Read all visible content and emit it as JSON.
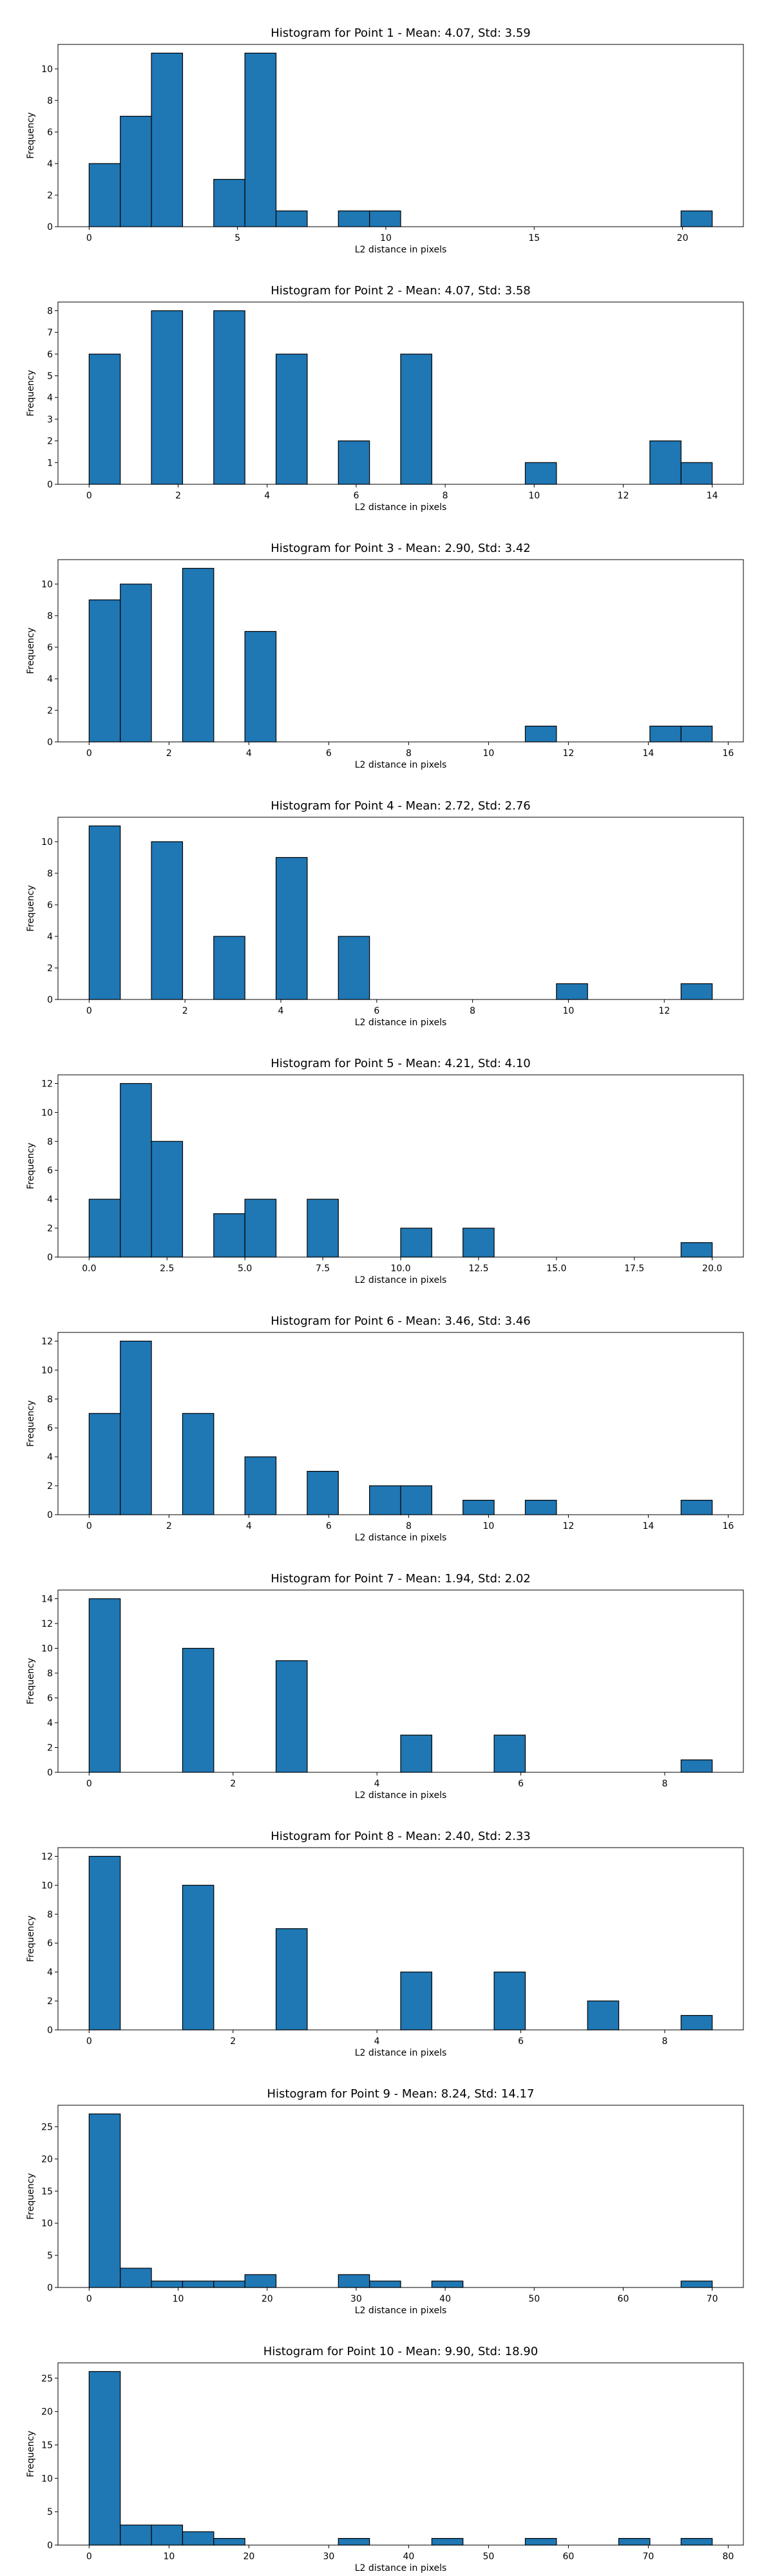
{
  "chart_data": [
    {
      "type": "histogram",
      "title": "Histogram for Point 1 - Mean: 4.07, Std: 3.59",
      "xlabel": "L2 distance in pixels",
      "ylabel": "Frequency",
      "color": "#1f77b4",
      "edgecolor": "#000000",
      "bins": [
        0,
        1.05,
        2.1,
        3.15,
        4.2,
        5.25,
        6.3,
        7.35,
        8.4,
        9.45,
        10.5,
        11.55,
        12.6,
        13.65,
        14.7,
        15.75,
        16.8,
        17.85,
        18.9,
        19.95,
        21
      ],
      "values": [
        4,
        7,
        11,
        0,
        3,
        11,
        1,
        0,
        1,
        1,
        0,
        0,
        0,
        0,
        0,
        0,
        0,
        0,
        0,
        1
      ],
      "xlim": [
        -1.05,
        22.05
      ],
      "xticks": [
        0,
        5,
        10,
        15,
        20
      ],
      "ylim": [
        0,
        11.55
      ],
      "yticks": [
        0,
        2,
        4,
        6,
        8,
        10
      ]
    },
    {
      "type": "histogram",
      "title": "Histogram for Point 2 - Mean: 4.07, Std: 3.58",
      "xlabel": "L2 distance in pixels",
      "ylabel": "Frequency",
      "color": "#1f77b4",
      "edgecolor": "#000000",
      "bins": [
        0,
        0.7,
        1.4,
        2.1,
        2.8,
        3.5,
        4.2,
        4.9,
        5.6,
        6.3,
        7,
        7.7,
        8.4,
        9.1,
        9.8,
        10.5,
        11.2,
        11.9,
        12.6,
        13.3,
        14
      ],
      "values": [
        6,
        0,
        8,
        0,
        8,
        0,
        6,
        0,
        2,
        0,
        6,
        0,
        0,
        0,
        1,
        0,
        0,
        0,
        2,
        1
      ],
      "xlim": [
        -0.7,
        14.7
      ],
      "xticks": [
        0,
        2,
        4,
        6,
        8,
        10,
        12,
        14
      ],
      "ylim": [
        0,
        8.4
      ],
      "yticks": [
        0,
        1,
        2,
        3,
        4,
        5,
        6,
        7,
        8
      ]
    },
    {
      "type": "histogram",
      "title": "Histogram for Point 3 - Mean: 2.90, Std: 3.42",
      "xlabel": "L2 distance in pixels",
      "ylabel": "Frequency",
      "color": "#1f77b4",
      "edgecolor": "#000000",
      "bins": [
        0,
        0.78,
        1.56,
        2.34,
        3.12,
        3.9,
        4.68,
        5.46,
        6.24,
        7.02,
        7.8,
        8.58,
        9.36,
        10.14,
        10.92,
        11.7,
        12.48,
        13.26,
        14.04,
        14.82,
        15.6
      ],
      "values": [
        9,
        10,
        0,
        11,
        0,
        7,
        0,
        0,
        0,
        0,
        0,
        0,
        0,
        0,
        1,
        0,
        0,
        0,
        1,
        1
      ],
      "xlim": [
        -0.78,
        16.38
      ],
      "xticks": [
        0,
        2,
        4,
        6,
        8,
        10,
        12,
        14,
        16
      ],
      "ylim": [
        0,
        11.55
      ],
      "yticks": [
        0,
        2,
        4,
        6,
        8,
        10
      ]
    },
    {
      "type": "histogram",
      "title": "Histogram for Point 4 - Mean: 2.72, Std: 2.76",
      "xlabel": "L2 distance in pixels",
      "ylabel": "Frequency",
      "color": "#1f77b4",
      "edgecolor": "#000000",
      "bins": [
        0,
        0.65,
        1.3,
        1.95,
        2.6,
        3.25,
        3.9,
        4.55,
        5.2,
        5.85,
        6.5,
        7.15,
        7.8,
        8.45,
        9.1,
        9.75,
        10.4,
        11.05,
        11.7,
        12.35,
        13
      ],
      "values": [
        11,
        0,
        10,
        0,
        4,
        0,
        9,
        0,
        4,
        0,
        0,
        0,
        0,
        0,
        0,
        1,
        0,
        0,
        0,
        1
      ],
      "xlim": [
        -0.65,
        13.65
      ],
      "xticks": [
        0,
        2,
        4,
        6,
        8,
        10,
        12
      ],
      "ylim": [
        0,
        11.55
      ],
      "yticks": [
        0,
        2,
        4,
        6,
        8,
        10
      ]
    },
    {
      "type": "histogram",
      "title": "Histogram for Point 5 - Mean: 4.21, Std: 4.10",
      "xlabel": "L2 distance in pixels",
      "ylabel": "Frequency",
      "color": "#1f77b4",
      "edgecolor": "#000000",
      "bins": [
        0,
        1,
        2,
        3,
        4,
        5,
        6,
        7,
        8,
        9,
        10,
        11,
        12,
        13,
        14,
        15,
        16,
        17,
        18,
        19,
        20
      ],
      "values": [
        4,
        12,
        8,
        0,
        3,
        4,
        0,
        4,
        0,
        0,
        2,
        0,
        2,
        0,
        0,
        0,
        0,
        0,
        0,
        1
      ],
      "xlim": [
        -1,
        21
      ],
      "xticks": [
        {
          "value": 0,
          "label": "0.0"
        },
        2.5,
        {
          "value": 5,
          "label": "5.0"
        },
        7.5,
        {
          "value": 10,
          "label": "10.0"
        },
        12.5,
        {
          "value": 15,
          "label": "15.0"
        },
        17.5,
        {
          "value": 20,
          "label": "20.0"
        }
      ],
      "ylim": [
        0,
        12.6
      ],
      "yticks": [
        0,
        2,
        4,
        6,
        8,
        10,
        12
      ]
    },
    {
      "type": "histogram",
      "title": "Histogram for Point 6 - Mean: 3.46, Std: 3.46",
      "xlabel": "L2 distance in pixels",
      "ylabel": "Frequency",
      "color": "#1f77b4",
      "edgecolor": "#000000",
      "bins": [
        0,
        0.78,
        1.56,
        2.34,
        3.12,
        3.9,
        4.68,
        5.46,
        6.24,
        7.02,
        7.8,
        8.58,
        9.36,
        10.14,
        10.92,
        11.7,
        12.48,
        13.26,
        14.04,
        14.82,
        15.6
      ],
      "values": [
        7,
        12,
        0,
        7,
        0,
        4,
        0,
        3,
        0,
        2,
        2,
        0,
        1,
        0,
        1,
        0,
        0,
        0,
        0,
        1
      ],
      "xlim": [
        -0.78,
        16.38
      ],
      "xticks": [
        0,
        2,
        4,
        6,
        8,
        10,
        12,
        14,
        16
      ],
      "ylim": [
        0,
        12.6
      ],
      "yticks": [
        0,
        2,
        4,
        6,
        8,
        10,
        12
      ]
    },
    {
      "type": "histogram",
      "title": "Histogram for Point 7 - Mean: 1.94, Std: 2.02",
      "xlabel": "L2 distance in pixels",
      "ylabel": "Frequency",
      "color": "#1f77b4",
      "edgecolor": "#000000",
      "bins": [
        0,
        0.433,
        0.866,
        1.299,
        1.732,
        2.165,
        2.598,
        3.031,
        3.464,
        3.897,
        4.33,
        4.763,
        5.196,
        5.629,
        6.062,
        6.495,
        6.928,
        7.361,
        7.794,
        8.227,
        8.66
      ],
      "values": [
        14,
        0,
        0,
        10,
        0,
        0,
        9,
        0,
        0,
        0,
        3,
        0,
        0,
        3,
        0,
        0,
        0,
        0,
        0,
        1
      ],
      "xlim": [
        -0.433,
        9.093
      ],
      "xticks": [
        0,
        2,
        4,
        6,
        8
      ],
      "ylim": [
        0,
        14.7
      ],
      "yticks": [
        0,
        2,
        4,
        6,
        8,
        10,
        12,
        14
      ]
    },
    {
      "type": "histogram",
      "title": "Histogram for Point 8 - Mean: 2.40, Std: 2.33",
      "xlabel": "L2 distance in pixels",
      "ylabel": "Frequency",
      "color": "#1f77b4",
      "edgecolor": "#000000",
      "bins": [
        0,
        0.433,
        0.866,
        1.299,
        1.732,
        2.165,
        2.598,
        3.031,
        3.464,
        3.897,
        4.33,
        4.763,
        5.196,
        5.629,
        6.062,
        6.495,
        6.928,
        7.361,
        7.794,
        8.227,
        8.66
      ],
      "values": [
        12,
        0,
        0,
        10,
        0,
        0,
        7,
        0,
        0,
        0,
        4,
        0,
        0,
        4,
        0,
        0,
        2,
        0,
        0,
        1
      ],
      "xlim": [
        -0.433,
        9.093
      ],
      "xticks": [
        0,
        2,
        4,
        6,
        8
      ],
      "ylim": [
        0,
        12.6
      ],
      "yticks": [
        0,
        2,
        4,
        6,
        8,
        10,
        12
      ]
    },
    {
      "type": "histogram",
      "title": "Histogram for Point 9 - Mean: 8.24, Std: 14.17",
      "xlabel": "L2 distance in pixels",
      "ylabel": "Frequency",
      "color": "#1f77b4",
      "edgecolor": "#000000",
      "bins": [
        0,
        3.5,
        7,
        10.5,
        14,
        17.5,
        21,
        24.5,
        28,
        31.5,
        35,
        38.5,
        42,
        45.5,
        49,
        52.5,
        56,
        59.5,
        63,
        66.5,
        70
      ],
      "values": [
        27,
        3,
        1,
        1,
        1,
        2,
        0,
        0,
        2,
        1,
        0,
        1,
        0,
        0,
        0,
        0,
        0,
        0,
        0,
        1
      ],
      "xlim": [
        -3.5,
        73.5
      ],
      "xticks": [
        0,
        10,
        20,
        30,
        40,
        50,
        60,
        70
      ],
      "ylim": [
        0,
        28.35
      ],
      "yticks": [
        0,
        5,
        10,
        15,
        20,
        25
      ]
    },
    {
      "type": "histogram",
      "title": "Histogram for Point 10 - Mean: 9.90, Std: 18.90",
      "xlabel": "L2 distance in pixels",
      "ylabel": "Frequency",
      "color": "#1f77b4",
      "edgecolor": "#000000",
      "bins": [
        0,
        3.9,
        7.8,
        11.7,
        15.6,
        19.5,
        23.4,
        27.3,
        31.2,
        35.1,
        39,
        42.9,
        46.8,
        50.7,
        54.6,
        58.5,
        62.4,
        66.3,
        70.2,
        74.1,
        78
      ],
      "values": [
        26,
        3,
        3,
        2,
        1,
        0,
        0,
        0,
        1,
        0,
        0,
        1,
        0,
        0,
        1,
        0,
        0,
        1,
        0,
        1
      ],
      "xlim": [
        -3.9,
        81.9
      ],
      "xticks": [
        0,
        10,
        20,
        30,
        40,
        50,
        60,
        70,
        80
      ],
      "ylim": [
        0,
        27.3
      ],
      "yticks": [
        0,
        5,
        10,
        15,
        20,
        25
      ]
    }
  ]
}
